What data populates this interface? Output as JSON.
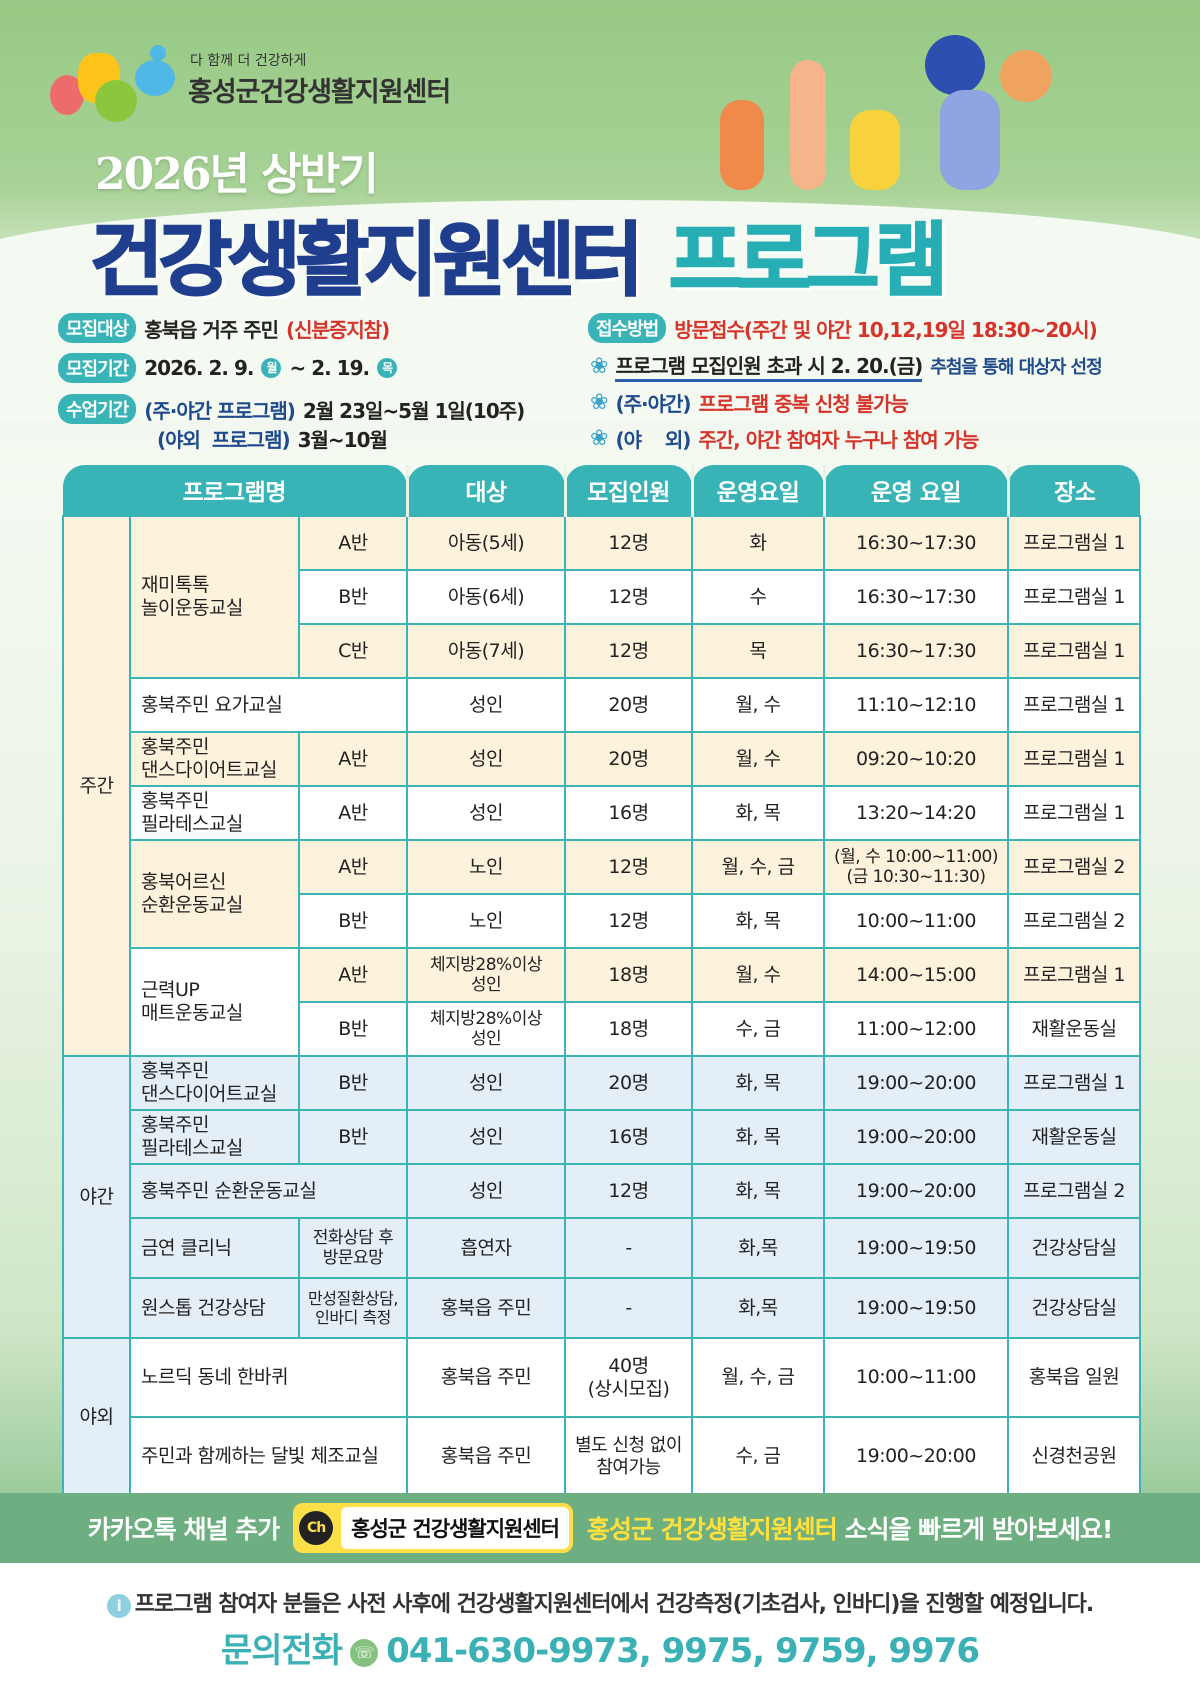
{
  "header": {
    "slogan": "다 함께 더 건강하게",
    "center_name": "홍성군건강생활지원센터",
    "half": "2026년 상반기",
    "title_main": "건강생활지원센터",
    "title_accent": "프로그램"
  },
  "info": {
    "target_label": "모집대상",
    "target_value": "홍북읍 거주 주민",
    "target_note": "(신분증지참)",
    "period_label": "모집기간",
    "period_start": "2026. 2. 9.",
    "period_start_day": "월",
    "period_sep": "~ 2. 19.",
    "period_end_day": "목",
    "class_label": "수업기간",
    "class_line1_a": "(주·야간 프로그램)",
    "class_line1_b": "2월 23일~5월 1일(10주)",
    "class_line2_a": "(야외  프로그램)",
    "class_line2_b": "3월~10월",
    "method_label": "접수방법",
    "method_value": "방문접수(주간 및 야간 10,12,19일 18:30~20시)",
    "notes": [
      {
        "a": "프로그램 모집인원 초과 시 2. 20.(금)",
        "b": "추첨을 통해 대상자 선정"
      },
      {
        "a": "(주·야간)",
        "b": "프로그램 중복 신청 불가능"
      },
      {
        "a": "(야    외)",
        "b": "주간, 야간 참여자 누구나 참여 가능"
      }
    ]
  },
  "table": {
    "headers": [
      "프로그램명",
      "대상",
      "모집인원",
      "운영요일",
      "운영 요일",
      "장소"
    ],
    "groups": [
      "주간",
      "야간",
      "야외"
    ],
    "rows": [
      {
        "name": "재미톡톡\n놀이운동교실",
        "sub": "A반",
        "target": "아동(5세)",
        "count": "12명",
        "days": "화",
        "time": "16:30~17:30",
        "place": "프로그램실 1"
      },
      {
        "sub": "B반",
        "target": "아동(6세)",
        "count": "12명",
        "days": "수",
        "time": "16:30~17:30",
        "place": "프로그램실 1"
      },
      {
        "sub": "C반",
        "target": "아동(7세)",
        "count": "12명",
        "days": "목",
        "time": "16:30~17:30",
        "place": "프로그램실 1"
      },
      {
        "name": "홍북주민 요가교실",
        "target": "성인",
        "count": "20명",
        "days": "월, 수",
        "time": "11:10~12:10",
        "place": "프로그램실 1"
      },
      {
        "name": "홍북주민\n댄스다이어트교실",
        "sub": "A반",
        "target": "성인",
        "count": "20명",
        "days": "월, 수",
        "time": "09:20~10:20",
        "place": "프로그램실 1"
      },
      {
        "name": "홍북주민\n필라테스교실",
        "sub": "A반",
        "target": "성인",
        "count": "16명",
        "days": "화, 목",
        "time": "13:20~14:20",
        "place": "프로그램실 1"
      },
      {
        "name": "홍북어르신\n순환운동교실",
        "sub": "A반",
        "target": "노인",
        "count": "12명",
        "days": "월, 수, 금",
        "time": "(월, 수 10:00~11:00)\n(금 10:30~11:30)",
        "place": "프로그램실 2"
      },
      {
        "sub": "B반",
        "target": "노인",
        "count": "12명",
        "days": "화, 목",
        "time": "10:00~11:00",
        "place": "프로그램실 2"
      },
      {
        "name": "근력UP\n매트운동교실",
        "sub": "A반",
        "target": "체지방28%이상\n성인",
        "count": "18명",
        "days": "월, 수",
        "time": "14:00~15:00",
        "place": "프로그램실 1"
      },
      {
        "sub": "B반",
        "target": "체지방28%이상\n성인",
        "count": "18명",
        "days": "수, 금",
        "time": "11:00~12:00",
        "place": "재활운동실"
      },
      {
        "name": "홍북주민\n댄스다이어트교실",
        "sub": "B반",
        "target": "성인",
        "count": "20명",
        "days": "화, 목",
        "time": "19:00~20:00",
        "place": "프로그램실 1"
      },
      {
        "name": "홍북주민\n필라테스교실",
        "sub": "B반",
        "target": "성인",
        "count": "16명",
        "days": "화, 목",
        "time": "19:00~20:00",
        "place": "재활운동실"
      },
      {
        "name": "홍북주민 순환운동교실",
        "target": "성인",
        "count": "12명",
        "days": "화, 목",
        "time": "19:00~20:00",
        "place": "프로그램실 2"
      },
      {
        "name": "금연 클리닉",
        "sub": "전화상담 후\n방문요망",
        "target": "흡연자",
        "count": "-",
        "days": "화,목",
        "time": "19:00~19:50",
        "place": "건강상담실"
      },
      {
        "name": "원스톱 건강상담",
        "sub": "만성질환상담,\n인바디 측정",
        "target": "홍북읍 주민",
        "count": "-",
        "days": "화,목",
        "time": "19:00~19:50",
        "place": "건강상담실"
      },
      {
        "name": "노르딕 동네 한바퀴",
        "target": "홍북읍 주민",
        "count": "40명\n(상시모집)",
        "days": "월, 수, 금",
        "time": "10:00~11:00",
        "place": "홍북읍 일원"
      },
      {
        "name": "주민과 함께하는 달빛 체조교실",
        "target": "홍북읍 주민",
        "count": "별도 신청 없이\n참여가능",
        "days": "수, 금",
        "time": "19:00~20:00",
        "place": "신경천공원"
      }
    ]
  },
  "kakao": {
    "prefix": "카카오톡 채널 추가",
    "icon_text": "Ch",
    "channel": "홍성군 건강생활지원센터",
    "highlight": "홍성군 건강생활지원센터",
    "suffix": "소식을 빠르게 받아보세요!"
  },
  "footer": {
    "note": "프로그램 참여자 분들은 사전 사후에 건강생활지원센터에서 건강측정(기초검사, 인바디)을 진행할 예정입니다.",
    "phone_label": "문의전화",
    "phone": "041-630-9973, 9975, 9759, 9976"
  },
  "colors": {
    "teal": "#38b3b6",
    "navy": "#1f3e8e",
    "red": "#d6342a",
    "cream": "#fdf2db",
    "band": "#6daf80",
    "kakao": "#fde047"
  }
}
